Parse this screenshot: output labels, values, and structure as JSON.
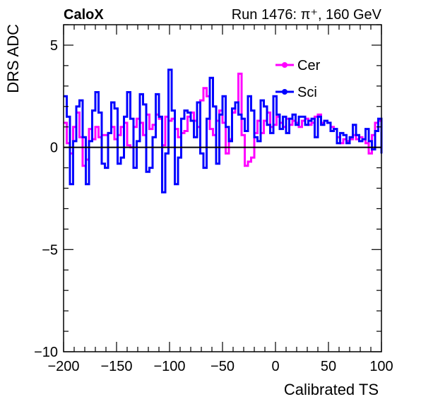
{
  "header": {
    "experiment": "CaloX",
    "run_info": "Run 1476:   π⁺, 160 GeV"
  },
  "chart_data": {
    "type": "line",
    "title": "",
    "xlabel": "Calibrated TS",
    "ylabel": "DRS ADC",
    "xlim": [
      -200,
      100
    ],
    "ylim": [
      -10,
      6
    ],
    "x_ticks": [
      -200,
      -150,
      -100,
      -50,
      0,
      50,
      100
    ],
    "x_tick_labels": [
      "−200",
      "−150",
      "−100",
      "−50",
      "0",
      "50",
      "100"
    ],
    "y_ticks": [
      -10,
      -5,
      0,
      5
    ],
    "y_tick_labels": [
      "−10",
      "−5",
      "0",
      "5"
    ],
    "grid": false,
    "zero_line": true,
    "legend_position": "top-right",
    "series": [
      {
        "name": "Cer",
        "color": "#ff00ff",
        "x": [
          -200,
          -197,
          -194,
          -191,
          -188,
          -185,
          -182,
          -179,
          -176,
          -173,
          -170,
          -167,
          -164,
          -161,
          -158,
          -155,
          -152,
          -149,
          -146,
          -143,
          -140,
          -137,
          -134,
          -131,
          -128,
          -125,
          -122,
          -119,
          -116,
          -113,
          -110,
          -107,
          -104,
          -101,
          -98,
          -95,
          -92,
          -89,
          -86,
          -83,
          -80,
          -77,
          -74,
          -71,
          -68,
          -65,
          -62,
          -59,
          -56,
          -53,
          -50,
          -47,
          -44,
          -41,
          -38,
          -35,
          -32,
          -29,
          -26,
          -23,
          -20,
          -17,
          -14,
          -11,
          -8,
          -5,
          -2,
          1,
          4,
          7,
          10,
          13,
          16,
          19,
          22,
          25,
          28,
          31,
          34,
          37,
          40,
          43,
          46,
          49,
          52,
          55,
          58,
          61,
          64,
          67,
          70,
          73,
          76,
          79,
          82,
          85,
          88,
          91,
          94,
          97,
          100
        ],
        "y": [
          1.2,
          0.2,
          -0.3,
          1.0,
          1.7,
          0.5,
          -0.9,
          -0.6,
          0.9,
          0.4,
          1.0,
          0.5,
          0.6,
          0.6,
          0.7,
          1.0,
          0.4,
          0.6,
          1.0,
          1.2,
          0.1,
          0.0,
          1.0,
          1.4,
          1.2,
          0.6,
          1.6,
          0.9,
          1.1,
          1.6,
          1.4,
          0.1,
          1.5,
          1.3,
          1.4,
          0.9,
          0.5,
          0.7,
          0.8,
          1.5,
          1.7,
          1.3,
          1.0,
          2.3,
          2.9,
          2.5,
          0.9,
          0.6,
          1.3,
          1.8,
          1.2,
          -0.3,
          0.4,
          1.7,
          2.2,
          3.6,
          0.6,
          -0.9,
          -0.7,
          -0.5,
          0.7,
          1.3,
          0.7,
          1.3,
          1.7,
          1.0,
          1.1,
          1.5,
          1.2,
          1.0,
          1.4,
          1.1,
          1.3,
          1.2,
          1.0,
          1.3,
          1.4,
          1.1,
          1.2,
          1.5,
          1.6,
          1.2,
          1.3,
          1.2,
          1.0,
          0.9,
          0.5,
          0.2,
          0.4,
          0.3,
          0.4,
          0.6,
          0.4,
          0.5,
          0.4,
          0.2,
          -0.3,
          0.6,
          1.2,
          1.3,
          0.6
        ]
      },
      {
        "name": "Sci",
        "color": "#0000ff",
        "x": [
          -200,
          -197,
          -194,
          -191,
          -188,
          -185,
          -182,
          -179,
          -176,
          -173,
          -170,
          -167,
          -164,
          -161,
          -158,
          -155,
          -152,
          -149,
          -146,
          -143,
          -140,
          -137,
          -134,
          -131,
          -128,
          -125,
          -122,
          -119,
          -116,
          -113,
          -110,
          -107,
          -104,
          -101,
          -98,
          -95,
          -92,
          -89,
          -86,
          -83,
          -80,
          -77,
          -74,
          -71,
          -68,
          -65,
          -62,
          -59,
          -56,
          -53,
          -50,
          -47,
          -44,
          -41,
          -38,
          -35,
          -32,
          -29,
          -26,
          -23,
          -20,
          -17,
          -14,
          -11,
          -8,
          -5,
          -2,
          1,
          4,
          7,
          10,
          13,
          16,
          19,
          22,
          25,
          28,
          31,
          34,
          37,
          40,
          43,
          46,
          49,
          52,
          55,
          58,
          61,
          64,
          67,
          70,
          73,
          76,
          79,
          82,
          85,
          88,
          91,
          94,
          97,
          100
        ],
        "y": [
          2.5,
          1.5,
          -1.8,
          0.3,
          2.0,
          2.3,
          0.5,
          -1.8,
          0.3,
          1.8,
          2.7,
          1.7,
          -0.8,
          -1.0,
          0.7,
          2.2,
          1.9,
          -0.8,
          -0.5,
          1.5,
          2.7,
          1.4,
          -1.0,
          0.3,
          2.6,
          2.1,
          -1.2,
          -1.0,
          0.5,
          2.6,
          1.5,
          -2.2,
          -0.3,
          3.8,
          1.8,
          -1.8,
          -0.5,
          1.4,
          1.8,
          1.7,
          1.3,
          0.5,
          2.2,
          -0.3,
          -1.0,
          1.4,
          3.4,
          2.0,
          -0.8,
          1.6,
          2.5,
          1.0,
          0.3,
          1.9,
          2.2,
          1.6,
          1.4,
          0.8,
          2.5,
          1.8,
          0.5,
          0.3,
          2.3,
          2.0,
          1.1,
          0.7,
          2.5,
          1.6,
          0.9,
          1.5,
          0.7,
          1.4,
          1.6,
          1.1,
          1.5,
          1.5,
          1.1,
          1.3,
          1.4,
          0.5,
          1.5,
          1.1,
          1.3,
          1.2,
          0.8,
          0.9,
          0.2,
          0.7,
          0.6,
          0.2,
          0.5,
          1.1,
          0.6,
          0.3,
          0.4,
          0.9,
          0.3,
          -0.1,
          0.8,
          1.4,
          -0.3
        ]
      }
    ]
  }
}
